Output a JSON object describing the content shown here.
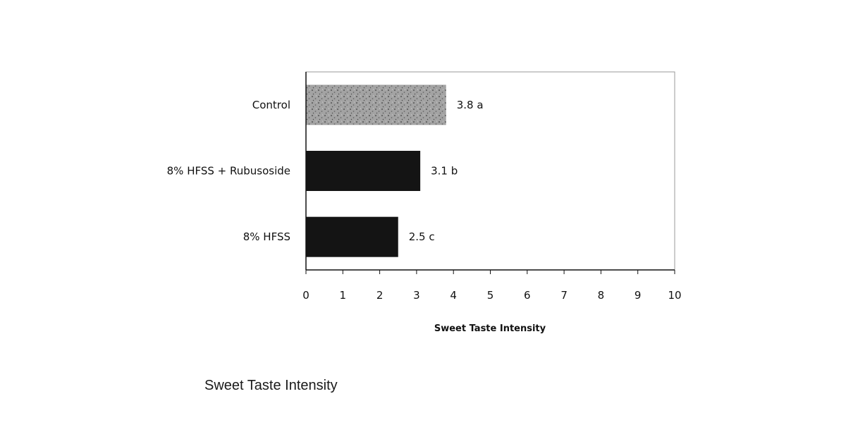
{
  "chart_data": {
    "type": "bar",
    "orientation": "horizontal",
    "categories": [
      "Control",
      "8% HFSS + Rubusoside",
      "8% HFSS"
    ],
    "values": [
      3.8,
      3.1,
      2.5
    ],
    "data_labels": [
      "3.8 a",
      "3.1 b",
      "2.5 c"
    ],
    "bar_colors": [
      "#9a9a9a",
      "#141414",
      "#141414"
    ],
    "xlabel": "Sweet Taste Intensity",
    "xlim": [
      0,
      10
    ],
    "xticks": [
      0,
      1,
      2,
      3,
      4,
      5,
      6,
      7,
      8,
      9,
      10
    ],
    "grid": false,
    "legend": "none"
  },
  "caption": "Sweet Taste Intensity"
}
